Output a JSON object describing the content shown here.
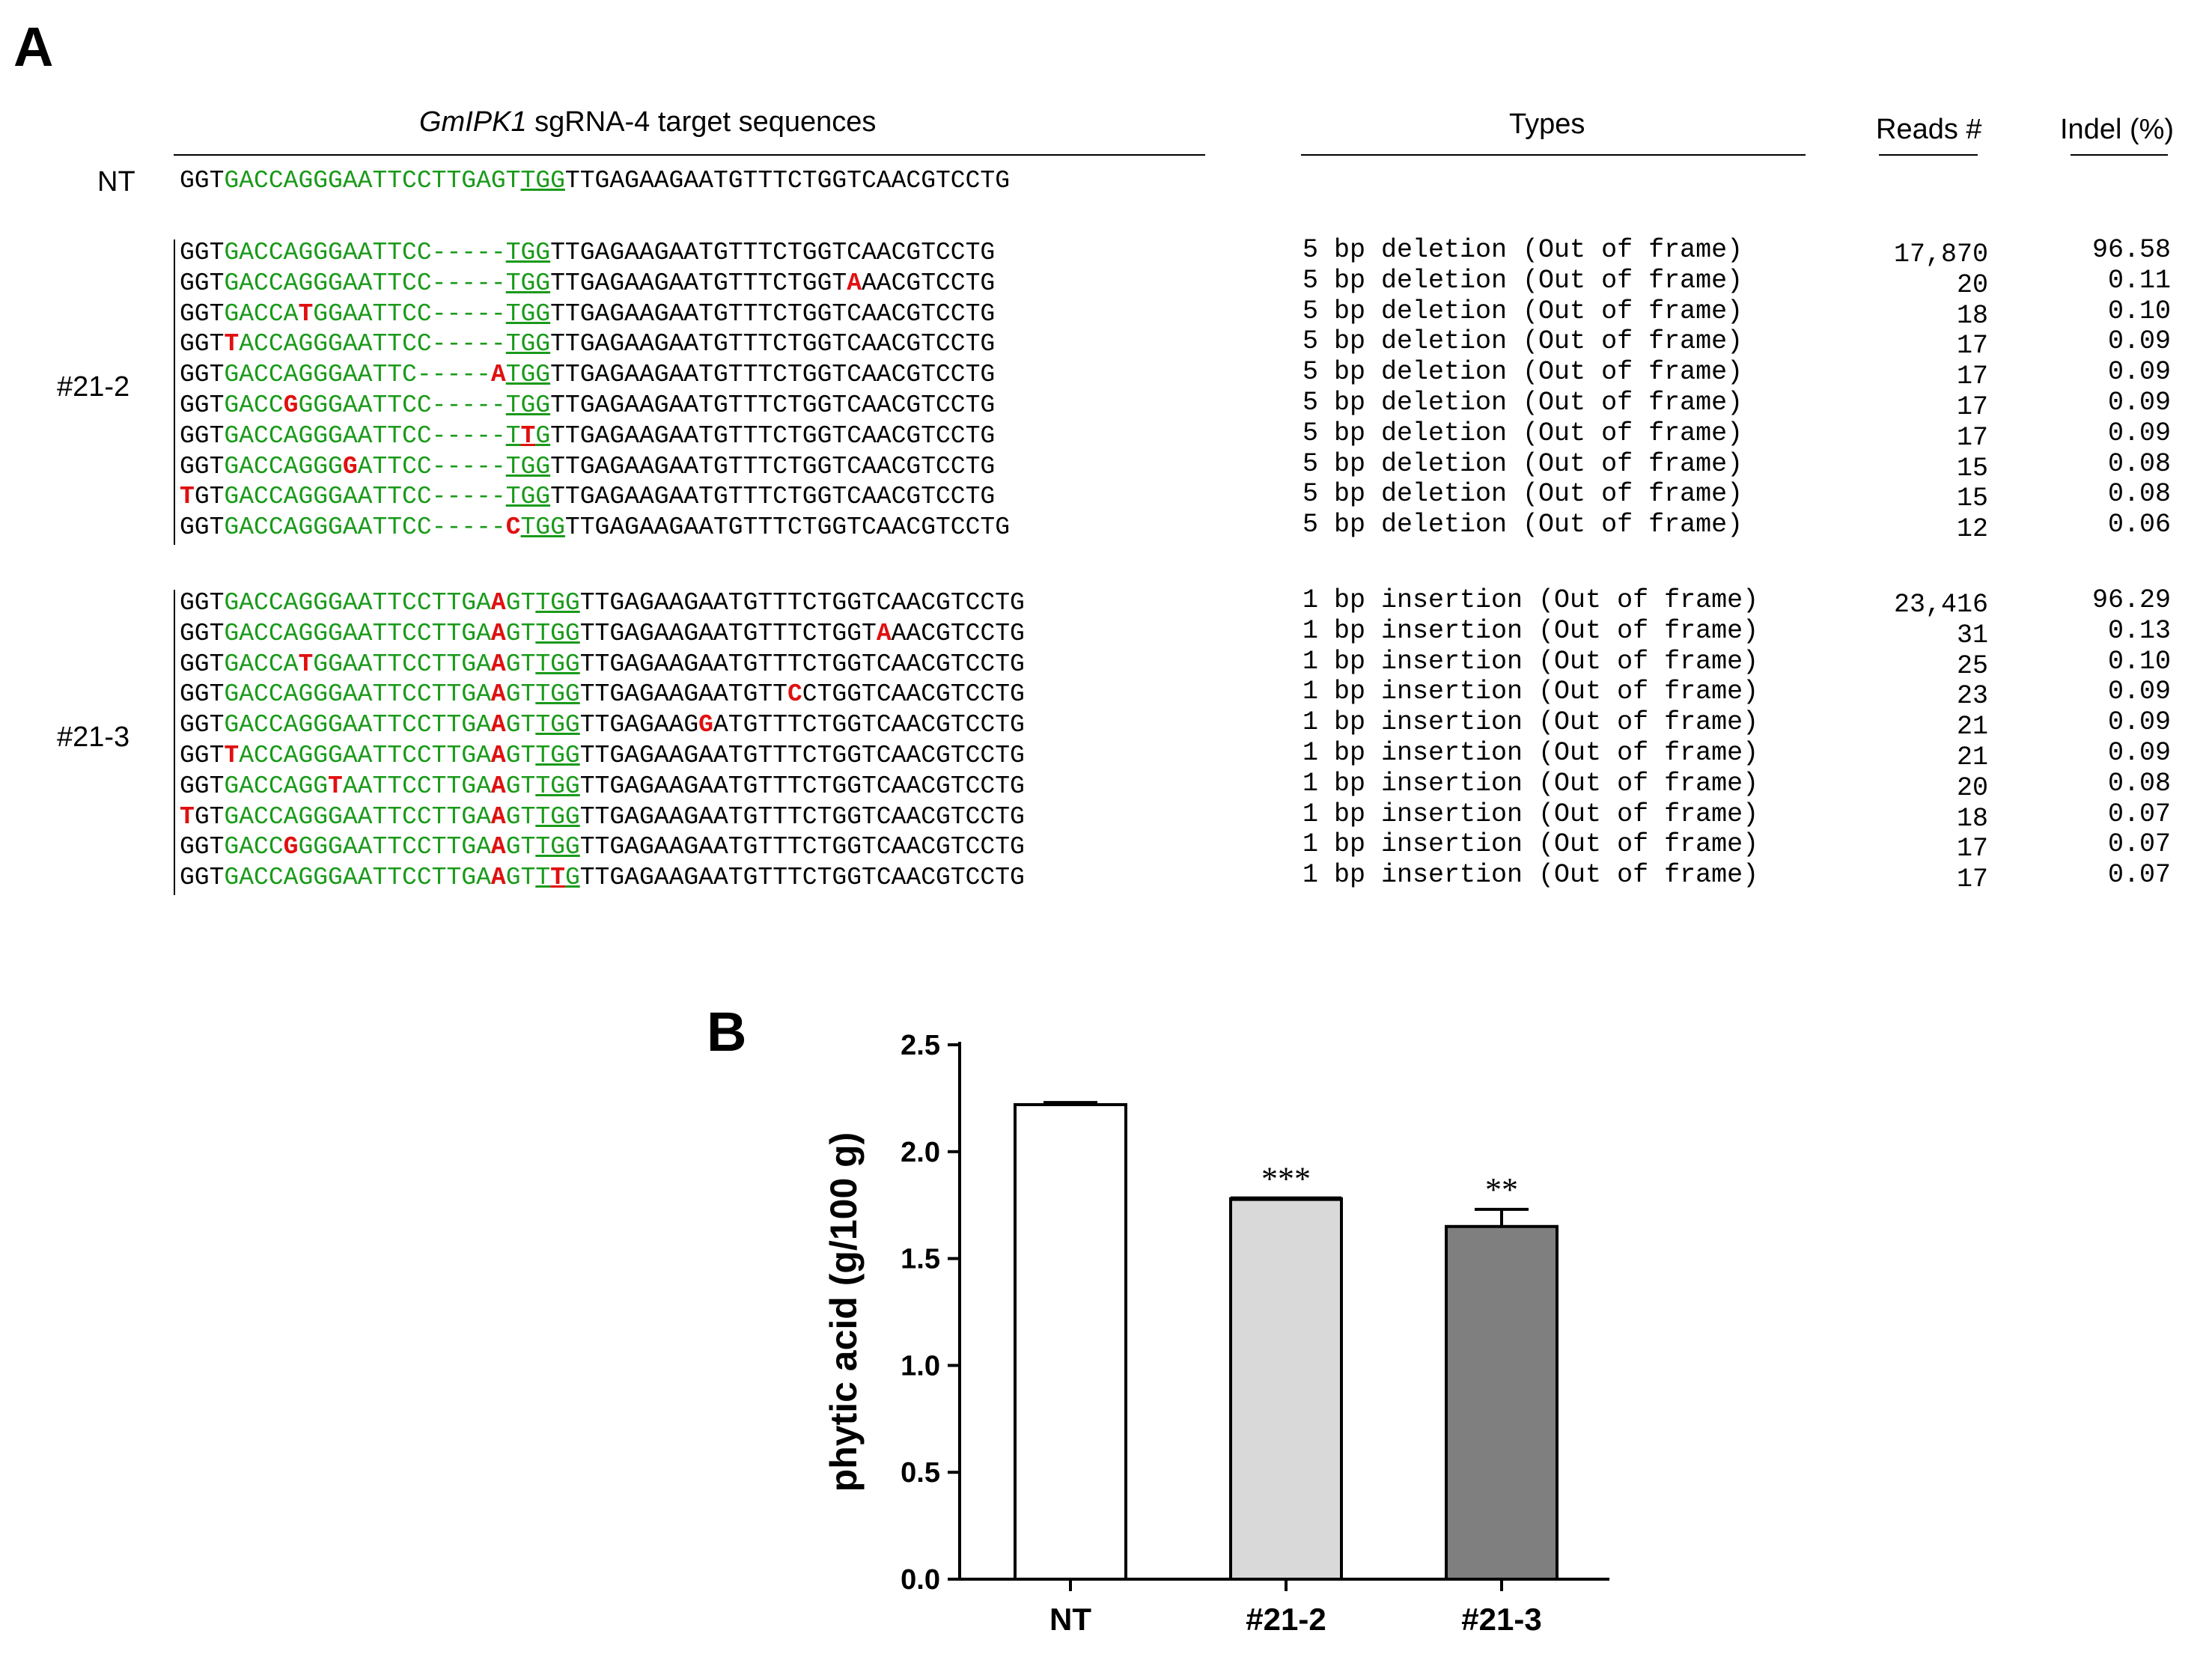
{
  "panel_a": {
    "letter": "A",
    "header_seq_italic": "GmIPK1",
    "header_seq_rest": " sgRNA-4 target sequences",
    "header_types": "Types",
    "header_reads": "Reads #",
    "header_indel": "Indel (%)",
    "nt_label": "NT",
    "nt_seq": [
      {
        "t": "GGT",
        "c": "b"
      },
      {
        "t": "GACCAGGGAATTCCTTGAGT",
        "c": "g"
      },
      {
        "t": "TGG",
        "c": "gu"
      },
      {
        "t": "TTGAGAAGAATGTTTCTGGTCAACGTCCTG",
        "c": "b"
      }
    ],
    "groups": [
      {
        "label": "#21-2",
        "rows": [
          {
            "seq": [
              {
                "t": "GGT",
                "c": "b"
              },
              {
                "t": "GACCAGGGAATTCC-----",
                "c": "g"
              },
              {
                "t": "TGG",
                "c": "gu"
              },
              {
                "t": "TTGAGAAGAATGTTTCTGGTCAACGTCCTG",
                "c": "b"
              }
            ],
            "type": "5 bp deletion (Out of frame)",
            "reads": "17,870",
            "indel": "96.58"
          },
          {
            "seq": [
              {
                "t": "GGT",
                "c": "b"
              },
              {
                "t": "GACCAGGGAATTCC-----",
                "c": "g"
              },
              {
                "t": "TGG",
                "c": "gu"
              },
              {
                "t": "TTGAGAAGAATGTTTCTGGT",
                "c": "b"
              },
              {
                "t": "A",
                "c": "r"
              },
              {
                "t": "AACGTCCTG",
                "c": "b"
              }
            ],
            "type": "5 bp deletion (Out of frame)",
            "reads": "20",
            "indel": "0.11"
          },
          {
            "seq": [
              {
                "t": "GGT",
                "c": "b"
              },
              {
                "t": "GACCA",
                "c": "g"
              },
              {
                "t": "T",
                "c": "r"
              },
              {
                "t": "GGAATTCC-----",
                "c": "g"
              },
              {
                "t": "TGG",
                "c": "gu"
              },
              {
                "t": "TTGAGAAGAATGTTTCTGGTCAACGTCCTG",
                "c": "b"
              }
            ],
            "type": "5 bp deletion (Out of frame)",
            "reads": "18",
            "indel": "0.10"
          },
          {
            "seq": [
              {
                "t": "GGT",
                "c": "b"
              },
              {
                "t": "T",
                "c": "r"
              },
              {
                "t": "ACCAGGGAATTCC-----",
                "c": "g"
              },
              {
                "t": "TGG",
                "c": "gu"
              },
              {
                "t": "TTGAGAAGAATGTTTCTGGTCAACGTCCTG",
                "c": "b"
              }
            ],
            "type": "5 bp deletion (Out of frame)",
            "reads": "17",
            "indel": "0.09"
          },
          {
            "seq": [
              {
                "t": "GGT",
                "c": "b"
              },
              {
                "t": "GACCAGGGAATTC-----",
                "c": "g"
              },
              {
                "t": "A",
                "c": "r"
              },
              {
                "t": "TGG",
                "c": "gu"
              },
              {
                "t": "TTGAGAAGAATGTTTCTGGTCAACGTCCTG",
                "c": "b"
              }
            ],
            "type": "5 bp deletion (Out of frame)",
            "reads": "17",
            "indel": "0.09"
          },
          {
            "seq": [
              {
                "t": "GGT",
                "c": "b"
              },
              {
                "t": "GACC",
                "c": "g"
              },
              {
                "t": "G",
                "c": "r"
              },
              {
                "t": "GGGAATTCC-----",
                "c": "g"
              },
              {
                "t": "TGG",
                "c": "gu"
              },
              {
                "t": "TTGAGAAGAATGTTTCTGGTCAACGTCCTG",
                "c": "b"
              }
            ],
            "type": "5 bp deletion (Out of frame)",
            "reads": "17",
            "indel": "0.09"
          },
          {
            "seq": [
              {
                "t": "GGT",
                "c": "b"
              },
              {
                "t": "GACCAGGGAATTCC-----",
                "c": "g"
              },
              {
                "t": "T",
                "c": "gu"
              },
              {
                "t": "T",
                "c": "ru"
              },
              {
                "t": "G",
                "c": "gu"
              },
              {
                "t": "TTGAGAAGAATGTTTCTGGTCAACGTCCTG",
                "c": "b"
              }
            ],
            "type": "5 bp deletion (Out of frame)",
            "reads": "17",
            "indel": "0.09"
          },
          {
            "seq": [
              {
                "t": "GGT",
                "c": "b"
              },
              {
                "t": "GACCAGGG",
                "c": "g"
              },
              {
                "t": "G",
                "c": "r"
              },
              {
                "t": "ATTCC-----",
                "c": "g"
              },
              {
                "t": "TGG",
                "c": "gu"
              },
              {
                "t": "TTGAGAAGAATGTTTCTGGTCAACGTCCTG",
                "c": "b"
              }
            ],
            "type": "5 bp deletion (Out of frame)",
            "reads": "15",
            "indel": "0.08"
          },
          {
            "seq": [
              {
                "t": "T",
                "c": "r"
              },
              {
                "t": "GT",
                "c": "b"
              },
              {
                "t": "GACCAGGGAATTCC-----",
                "c": "g"
              },
              {
                "t": "TGG",
                "c": "gu"
              },
              {
                "t": "TTGAGAAGAATGTTTCTGGTCAACGTCCTG",
                "c": "b"
              }
            ],
            "type": "5 bp deletion (Out of frame)",
            "reads": "15",
            "indel": "0.08"
          },
          {
            "seq": [
              {
                "t": "GGT",
                "c": "b"
              },
              {
                "t": "GACCAGGGAATTCC-----",
                "c": "g"
              },
              {
                "t": "C",
                "c": "r"
              },
              {
                "t": "TGG",
                "c": "gu"
              },
              {
                "t": "TTGAGAAGAATGTTTCTGGTCAACGTCCTG",
                "c": "b"
              }
            ],
            "type": "5 bp deletion (Out of frame)",
            "reads": "12",
            "indel": "0.06"
          }
        ]
      },
      {
        "label": "#21-3",
        "rows": [
          {
            "seq": [
              {
                "t": "GGT",
                "c": "b"
              },
              {
                "t": "GACCAGGGAATTCCTTGA",
                "c": "g"
              },
              {
                "t": "A",
                "c": "r"
              },
              {
                "t": "GT",
                "c": "g"
              },
              {
                "t": "TGG",
                "c": "gu"
              },
              {
                "t": "TTGAGAAGAATGTTTCTGGTCAACGTCCTG",
                "c": "b"
              }
            ],
            "type": "1 bp insertion (Out of frame)",
            "reads": "23,416",
            "indel": "96.29"
          },
          {
            "seq": [
              {
                "t": "GGT",
                "c": "b"
              },
              {
                "t": "GACCAGGGAATTCCTTGA",
                "c": "g"
              },
              {
                "t": "A",
                "c": "r"
              },
              {
                "t": "GT",
                "c": "g"
              },
              {
                "t": "TGG",
                "c": "gu"
              },
              {
                "t": "TTGAGAAGAATGTTTCTGGT",
                "c": "b"
              },
              {
                "t": "A",
                "c": "r"
              },
              {
                "t": "AACGTCCTG",
                "c": "b"
              }
            ],
            "type": "1 bp insertion (Out of frame)",
            "reads": "31",
            "indel": "0.13"
          },
          {
            "seq": [
              {
                "t": "GGT",
                "c": "b"
              },
              {
                "t": "GACCA",
                "c": "g"
              },
              {
                "t": "T",
                "c": "r"
              },
              {
                "t": "GGAATTCCTTGA",
                "c": "g"
              },
              {
                "t": "A",
                "c": "r"
              },
              {
                "t": "GT",
                "c": "g"
              },
              {
                "t": "TGG",
                "c": "gu"
              },
              {
                "t": "TTGAGAAGAATGTTTCTGGTCAACGTCCTG",
                "c": "b"
              }
            ],
            "type": "1 bp insertion (Out of frame)",
            "reads": "25",
            "indel": "0.10"
          },
          {
            "seq": [
              {
                "t": "GGT",
                "c": "b"
              },
              {
                "t": "GACCAGGGAATTCCTTGA",
                "c": "g"
              },
              {
                "t": "A",
                "c": "r"
              },
              {
                "t": "GT",
                "c": "g"
              },
              {
                "t": "TGG",
                "c": "gu"
              },
              {
                "t": "TTGAGAAGAATGTT",
                "c": "b"
              },
              {
                "t": "C",
                "c": "r"
              },
              {
                "t": "CTGGTCAACGTCCTG",
                "c": "b"
              }
            ],
            "type": "1 bp insertion (Out of frame)",
            "reads": "23",
            "indel": "0.09"
          },
          {
            "seq": [
              {
                "t": "GGT",
                "c": "b"
              },
              {
                "t": "GACCAGGGAATTCCTTGA",
                "c": "g"
              },
              {
                "t": "A",
                "c": "r"
              },
              {
                "t": "GT",
                "c": "g"
              },
              {
                "t": "TGG",
                "c": "gu"
              },
              {
                "t": "TTGAGAAG",
                "c": "b"
              },
              {
                "t": "G",
                "c": "r"
              },
              {
                "t": "ATGTTTCTGGTCAACGTCCTG",
                "c": "b"
              }
            ],
            "type": "1 bp insertion (Out of frame)",
            "reads": "21",
            "indel": "0.09"
          },
          {
            "seq": [
              {
                "t": "GGT",
                "c": "b"
              },
              {
                "t": "T",
                "c": "r"
              },
              {
                "t": "ACCAGGGAATTCCTTGA",
                "c": "g"
              },
              {
                "t": "A",
                "c": "r"
              },
              {
                "t": "GT",
                "c": "g"
              },
              {
                "t": "TGG",
                "c": "gu"
              },
              {
                "t": "TTGAGAAGAATGTTTCTGGTCAACGTCCTG",
                "c": "b"
              }
            ],
            "type": "1 bp insertion (Out of frame)",
            "reads": "21",
            "indel": "0.09"
          },
          {
            "seq": [
              {
                "t": "GGT",
                "c": "b"
              },
              {
                "t": "GACCAGG",
                "c": "g"
              },
              {
                "t": "T",
                "c": "r"
              },
              {
                "t": "AATTCCTTGA",
                "c": "g"
              },
              {
                "t": "A",
                "c": "r"
              },
              {
                "t": "GT",
                "c": "g"
              },
              {
                "t": "TGG",
                "c": "gu"
              },
              {
                "t": "TTGAGAAGAATGTTTCTGGTCAACGTCCTG",
                "c": "b"
              }
            ],
            "type": "1 bp insertion (Out of frame)",
            "reads": "20",
            "indel": "0.08"
          },
          {
            "seq": [
              {
                "t": "T",
                "c": "r"
              },
              {
                "t": "GT",
                "c": "b"
              },
              {
                "t": "GACCAGGGAATTCCTTGA",
                "c": "g"
              },
              {
                "t": "A",
                "c": "r"
              },
              {
                "t": "GT",
                "c": "g"
              },
              {
                "t": "TGG",
                "c": "gu"
              },
              {
                "t": "TTGAGAAGAATGTTTCTGGTCAACGTCCTG",
                "c": "b"
              }
            ],
            "type": "1 bp insertion (Out of frame)",
            "reads": "18",
            "indel": "0.07"
          },
          {
            "seq": [
              {
                "t": "GGT",
                "c": "b"
              },
              {
                "t": "GACC",
                "c": "g"
              },
              {
                "t": "G",
                "c": "r"
              },
              {
                "t": "GGGAATTCCTTGA",
                "c": "g"
              },
              {
                "t": "A",
                "c": "r"
              },
              {
                "t": "GT",
                "c": "g"
              },
              {
                "t": "TGG",
                "c": "gu"
              },
              {
                "t": "TTGAGAAGAATGTTTCTGGTCAACGTCCTG",
                "c": "b"
              }
            ],
            "type": "1 bp insertion (Out of frame)",
            "reads": "17",
            "indel": "0.07"
          },
          {
            "seq": [
              {
                "t": "GGT",
                "c": "b"
              },
              {
                "t": "GACCAGGGAATTCCTTGA",
                "c": "g"
              },
              {
                "t": "A",
                "c": "r"
              },
              {
                "t": "GT",
                "c": "g"
              },
              {
                "t": "T",
                "c": "gu"
              },
              {
                "t": "T",
                "c": "ru"
              },
              {
                "t": "G",
                "c": "gu"
              },
              {
                "t": "TTGAGAAGAATGTTTCTGGTCAACGTCCTG",
                "c": "b"
              }
            ],
            "type": "1 bp insertion (Out of frame)",
            "reads": "17",
            "indel": "0.07"
          }
        ]
      }
    ]
  },
  "panel_b": {
    "letter": "B"
  },
  "chart_data": {
    "type": "bar",
    "categories": [
      "NT",
      "#21-2",
      "#21-3"
    ],
    "values": [
      2.22,
      1.78,
      1.65
    ],
    "errors": [
      0.01,
      0.0,
      0.08
    ],
    "significance": [
      "",
      "***",
      "**"
    ],
    "bar_colors": [
      "#ffffff",
      "#d9d9d9",
      "#7f7f7f"
    ],
    "ylabel": "phytic acid (g/100 g)",
    "xlabel": "",
    "ylim": [
      0,
      2.5
    ],
    "yticks": [
      "0.0",
      "0.5",
      "1.0",
      "1.5",
      "2.0",
      "2.5"
    ],
    "ytick_values": [
      0,
      0.5,
      1.0,
      1.5,
      2.0,
      2.5
    ],
    "grid": false
  },
  "colors": {
    "green": "#1a9a1a",
    "red": "#e01010"
  }
}
